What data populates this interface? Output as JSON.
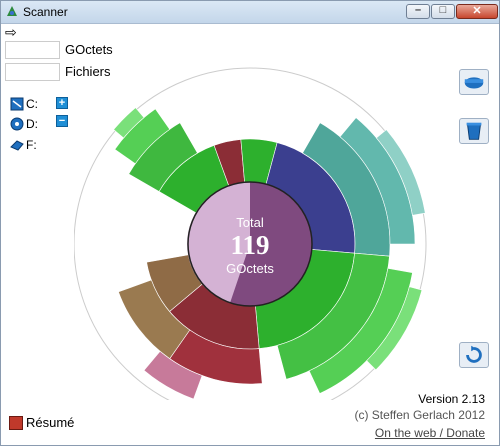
{
  "window": {
    "title": "Scanner"
  },
  "summary": {
    "size_unit": "GOctets",
    "files_label": "Fichiers"
  },
  "drives": [
    {
      "label": "C:"
    },
    {
      "label": "D:"
    },
    {
      "label": "F:"
    }
  ],
  "center": {
    "label": "Total",
    "value": "119",
    "unit": "GOctets"
  },
  "footer": {
    "version": "Version 2.13",
    "copyright": "(c) Steffen Gerlach 2012",
    "link": "On the web / Donate"
  },
  "resume_label": "Résumé",
  "colors": {
    "used": "#7f4a7f",
    "free": "#d4b2d4",
    "navy": "#3b3f8f",
    "teal": "#4fa69a",
    "green": "#2db02d",
    "red": "#8b2d36",
    "brown": "#8f6b46"
  }
}
